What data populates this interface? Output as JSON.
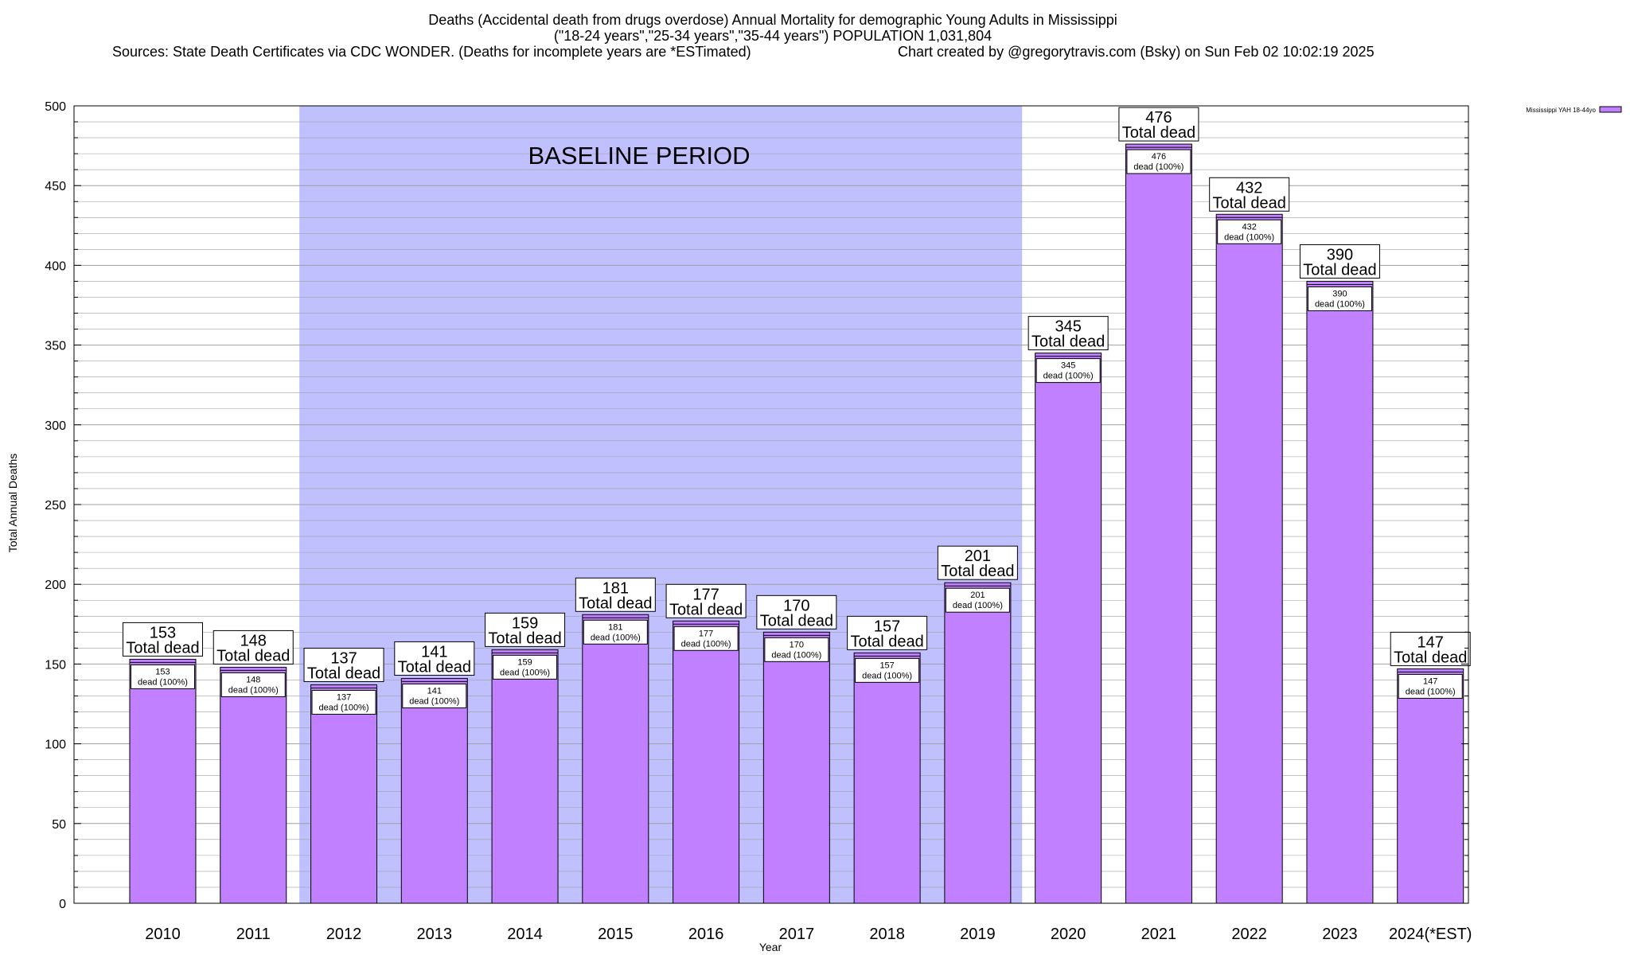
{
  "title_lines": [
    "Deaths (Accidental death from drugs overdose) Annual Mortality for demographic Young Adults in Mississippi",
    "(\"18-24 years\",\"25-34 years\",\"35-44 years\") POPULATION 1,031,804"
  ],
  "source_text": "Sources: State Death Certificates via CDC WONDER. (Deaths for incomplete years are *ESTimated)",
  "credit_text": "Chart created by @gregorytravis.com (Bsky) on Sun Feb 02 10:02:19 2025",
  "colors": {
    "bar": "#c080ff",
    "baseline": "#c0c0ff",
    "grid": "#a0a0a0",
    "axis": "#000000"
  },
  "chart_data": {
    "type": "bar",
    "xlabel": "Year",
    "ylabel": "Total Annual Deaths",
    "ylim": [
      0,
      500
    ],
    "y_ticks": [
      "0",
      "50",
      "100",
      "150",
      "200",
      "250",
      "300",
      "350",
      "400",
      "450",
      "500"
    ],
    "grid": true,
    "legend": {
      "placement": "top-right",
      "entries": [
        "Mississippi YAH 18-44yo"
      ]
    },
    "categories": [
      "2010",
      "2011",
      "2012",
      "2013",
      "2014",
      "2015",
      "2016",
      "2017",
      "2018",
      "2019",
      "2020",
      "2021",
      "2022",
      "2023",
      "2024(*EST)"
    ],
    "series": [
      {
        "name": "Mississippi YAH 18-44yo",
        "values": [
          153,
          148,
          137,
          141,
          159,
          181,
          177,
          170,
          157,
          201,
          345,
          476,
          432,
          390,
          147
        ]
      }
    ],
    "total_label": "Total dead",
    "inner_label": "dead (100%)",
    "annotations": [
      {
        "text": "BASELINE PERIOD",
        "from_category": "2012",
        "to_category": "2019"
      }
    ]
  }
}
